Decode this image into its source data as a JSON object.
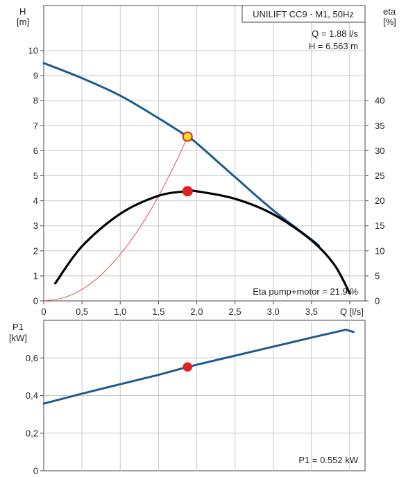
{
  "chart_data": [
    {
      "type": "line",
      "title": "UNILIFT CC9 - M1, 50Hz",
      "annotations": [
        "Q = 1.88 l/s",
        "H = 6.563 m",
        "Eta pump+motor = 21.9 %"
      ],
      "x_axis": {
        "label": "Q [l/s]",
        "range": [
          0,
          4.2
        ],
        "ticks": [
          0,
          0.5,
          1.0,
          1.5,
          2.0,
          2.5,
          3.0,
          3.5,
          4.0
        ],
        "tick_labels": [
          "0",
          "0,5",
          "1,0",
          "1,5",
          "2,0",
          "2,5",
          "3,0",
          "3,5",
          "Q [l/s]"
        ]
      },
      "y_axis_left": {
        "label_line1": "H",
        "label_line2": "[m]",
        "range": [
          0,
          11.8
        ],
        "ticks": [
          0,
          1,
          2,
          3,
          4,
          5,
          6,
          7,
          8,
          9,
          10
        ],
        "tick_labels": [
          "0",
          "1",
          "2",
          "3",
          "4",
          "5",
          "6",
          "7",
          "8",
          "9",
          "10"
        ]
      },
      "y_axis_right": {
        "label_line1": "eta",
        "label_line2": "[%]",
        "range": [
          0,
          59
        ],
        "ticks": [
          0,
          5,
          10,
          15,
          20,
          25,
          30,
          35,
          40
        ],
        "tick_labels": [
          "0",
          "5",
          "10",
          "15",
          "20",
          "25",
          "30",
          "35",
          "40"
        ]
      },
      "grid": true,
      "series": [
        {
          "key": "H",
          "axis": "left",
          "color": "#1f5a8e",
          "x": [
            0,
            0.5,
            1.0,
            1.5,
            1.88,
            2.0,
            2.5,
            3.0,
            3.5,
            3.6
          ],
          "y": [
            9.5,
            8.9,
            8.2,
            7.3,
            6.563,
            6.3,
            4.95,
            3.62,
            2.45,
            2.2
          ]
        },
        {
          "key": "eta",
          "axis": "right",
          "color": "#000000",
          "x": [
            0.15,
            0.5,
            1.0,
            1.5,
            1.88,
            2.0,
            2.5,
            3.0,
            3.5,
            3.8,
            4.0
          ],
          "y": [
            3.5,
            10.9,
            17.4,
            21.0,
            21.9,
            21.9,
            20.4,
            17.3,
            12.1,
            7.2,
            1.5
          ]
        },
        {
          "key": "system-curve",
          "axis": "left",
          "color": "#e05050",
          "x": [
            0.0,
            0.25,
            0.5,
            0.75,
            1.0,
            1.25,
            1.5,
            1.75,
            1.88
          ],
          "y": [
            0.0,
            0.12,
            0.46,
            1.04,
            1.86,
            2.9,
            4.18,
            5.68,
            6.563
          ]
        }
      ],
      "operating_points": [
        {
          "key": "H-point",
          "x": 1.88,
          "y": 6.563,
          "axis": "left",
          "fill": "#f0e020",
          "stroke": "#e02020"
        },
        {
          "key": "eta-point",
          "x": 1.88,
          "y": 21.9,
          "axis": "right",
          "fill": "#e02020",
          "stroke": "#e02020"
        }
      ]
    },
    {
      "type": "line",
      "x_axis": {
        "range": [
          0,
          4.2
        ],
        "ticks": [
          0,
          0.5,
          1.0,
          1.5,
          2.0,
          2.5,
          3.0,
          3.5,
          4.0
        ]
      },
      "y_axis_left": {
        "label_line1": "P1",
        "label_line2": "[kW]",
        "range": [
          0,
          0.8
        ],
        "ticks": [
          0,
          0.2,
          0.4,
          0.6
        ],
        "tick_labels": [
          "0",
          "0,2",
          "0,4",
          "0,6"
        ]
      },
      "annotations": [
        "P1 = 0.552 kW"
      ],
      "grid": true,
      "series": [
        {
          "key": "P1",
          "color": "#1f5a8e",
          "x": [
            0,
            0.5,
            1.0,
            1.5,
            1.88,
            2.0,
            2.5,
            3.0,
            3.5,
            3.95,
            4.05
          ],
          "y": [
            0.357,
            0.41,
            0.46,
            0.51,
            0.552,
            0.564,
            0.612,
            0.66,
            0.708,
            0.75,
            0.738
          ]
        }
      ],
      "operating_points": [
        {
          "key": "P1-point",
          "x": 1.88,
          "y": 0.552,
          "fill": "#e02020",
          "stroke": "#e02020"
        }
      ]
    }
  ]
}
